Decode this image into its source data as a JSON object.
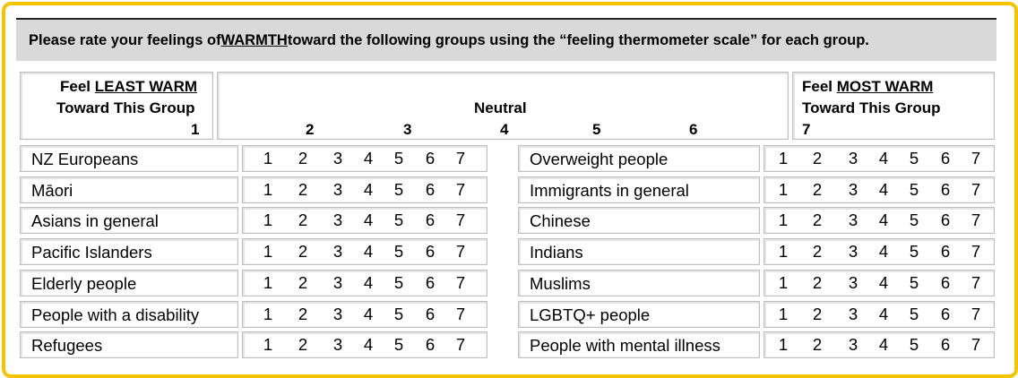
{
  "instruction": {
    "pre": "Please rate your feelings of ",
    "emph": "WARMTH",
    "post": " toward the following groups using the “feeling thermometer scale” for each group."
  },
  "header": {
    "left": {
      "feel": "Feel ",
      "emph": "LEAST WARM",
      "line2": "Toward This Group",
      "number": "1"
    },
    "middle": {
      "neutral": "Neutral",
      "numbers": [
        "2",
        "3",
        "4",
        "5",
        "6"
      ]
    },
    "right": {
      "feel": "Feel ",
      "emph": "MOST WARM",
      "line2": "Toward This Group",
      "number": "7"
    }
  },
  "scale": [
    "1",
    "2",
    "3",
    "4",
    "5",
    "6",
    "7"
  ],
  "groups_left": [
    "NZ Europeans",
    "Māori",
    "Asians in general",
    "Pacific Islanders",
    "Elderly people",
    "People with a disability",
    "Refugees"
  ],
  "groups_right": [
    "Overweight people",
    "Immigrants in general",
    "Chinese",
    "Indians",
    "Muslims",
    "LGBTQ+ people",
    "People with mental illness"
  ]
}
